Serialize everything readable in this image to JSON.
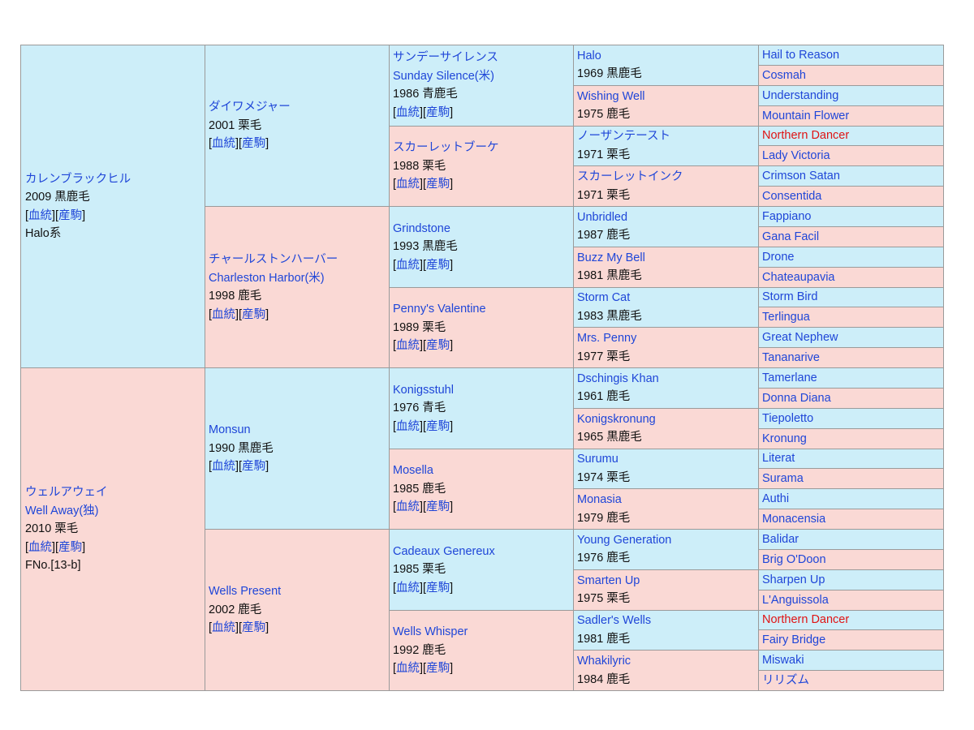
{
  "link_labels": {
    "pedigree": "血統",
    "progeny": "産駒"
  },
  "horses": {
    "a": {
      "name": "カレンブラックヒル",
      "info": "2009 黒鹿毛",
      "lineage": "Halo系"
    },
    "b": {
      "name": "ウェルアウェイ",
      "name2": "Well Away(独)",
      "info": "2010 栗毛",
      "family": "FNo.[13-b]"
    },
    "aa": {
      "name": "ダイワメジャー",
      "info": "2001 栗毛"
    },
    "ab": {
      "name": "チャールストンハーバー",
      "name2": "Charleston Harbor(米)",
      "info": "1998 鹿毛"
    },
    "ba": {
      "name": "Monsun",
      "info": "1990 黒鹿毛"
    },
    "bb": {
      "name": "Wells Present",
      "info": "2002 鹿毛"
    },
    "aaa": {
      "name": "サンデーサイレンス",
      "name2": "Sunday Silence(米)",
      "info": "1986 青鹿毛"
    },
    "aab": {
      "name": "スカーレットブーケ",
      "info": "1988 栗毛"
    },
    "aba": {
      "name": "Grindstone",
      "info": "1993 黒鹿毛"
    },
    "abb": {
      "name": "Penny's Valentine",
      "info": "1989 栗毛"
    },
    "baa": {
      "name": "Konigsstuhl",
      "info": "1976 青毛"
    },
    "bab": {
      "name": "Mosella",
      "info": "1985 鹿毛"
    },
    "bba": {
      "name": "Cadeaux Genereux",
      "info": "1985 栗毛"
    },
    "bbb": {
      "name": "Wells Whisper",
      "info": "1992 鹿毛"
    },
    "g4": [
      {
        "name": "Halo",
        "info": "1969 黒鹿毛"
      },
      {
        "name": "Wishing Well",
        "info": "1975 鹿毛"
      },
      {
        "name": "ノーザンテースト",
        "info": "1971 栗毛"
      },
      {
        "name": "スカーレットインク",
        "info": "1971 栗毛"
      },
      {
        "name": "Unbridled",
        "info": "1987 鹿毛"
      },
      {
        "name": "Buzz My Bell",
        "info": "1981 黒鹿毛"
      },
      {
        "name": "Storm Cat",
        "info": "1983 黒鹿毛"
      },
      {
        "name": "Mrs. Penny",
        "info": "1977 栗毛"
      },
      {
        "name": "Dschingis Khan",
        "info": "1961 鹿毛"
      },
      {
        "name": "Konigskronung",
        "info": "1965 黒鹿毛"
      },
      {
        "name": "Surumu",
        "info": "1974 栗毛"
      },
      {
        "name": "Monasia",
        "info": "1979 鹿毛"
      },
      {
        "name": "Young Generation",
        "info": "1976 鹿毛"
      },
      {
        "name": "Smarten Up",
        "info": "1975 栗毛"
      },
      {
        "name": "Sadler's Wells",
        "info": "1981 鹿毛"
      },
      {
        "name": "Whakilyric",
        "info": "1984 鹿毛"
      }
    ],
    "g5": [
      "Hail to Reason",
      "Cosmah",
      "Understanding",
      "Mountain Flower",
      "Northern Dancer",
      "Lady Victoria",
      "Crimson Satan",
      "Consentida",
      "Fappiano",
      "Gana Facil",
      "Drone",
      "Chateaupavia",
      "Storm Bird",
      "Terlingua",
      "Great Nephew",
      "Tananarive",
      "Tamerlane",
      "Donna Diana",
      "Tiepoletto",
      "Kronung",
      "Literat",
      "Surama",
      "Authi",
      "Monacensia",
      "Balidar",
      "Brig O'Doon",
      "Sharpen Up",
      "L'Anguissola",
      "Northern Dancer",
      "Fairy Bridge",
      "Miswaki",
      "リリズム"
    ]
  },
  "colors": {
    "sire_bg": "#cdeef9",
    "dam_bg": "#fad9d5",
    "link": "#1f46d8",
    "inbreed": "#e01414",
    "border": "#9a9a9a"
  }
}
